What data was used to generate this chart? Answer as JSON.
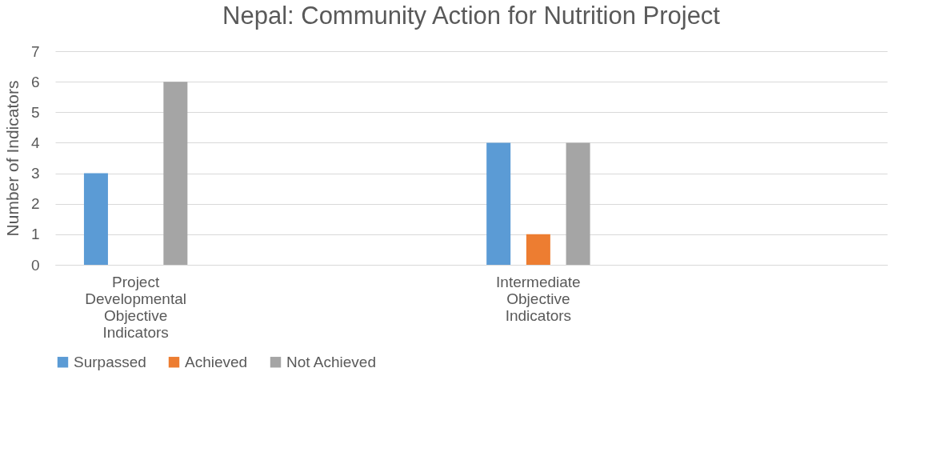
{
  "chart_data": {
    "type": "bar",
    "title": "Nepal: Community Action for Nutrition Project",
    "ylabel": "Number of Indicators",
    "categories": [
      "Project Developmental Objective Indicators",
      null,
      null,
      "Intermediate Objective Indicators",
      null,
      null
    ],
    "series": [
      {
        "name": "Surpassed",
        "color": "#5b9bd5",
        "values": [
          3,
          null,
          null,
          4,
          null,
          null
        ]
      },
      {
        "name": "Achieved",
        "color": "#ed7d31",
        "values": [
          0,
          null,
          null,
          1,
          null,
          null
        ]
      },
      {
        "name": "Not Achieved",
        "color": "#a5a5a5",
        "values": [
          6,
          null,
          null,
          4,
          null,
          null
        ]
      }
    ],
    "ylim": [
      0,
      7
    ],
    "yticks": [
      0,
      1,
      2,
      3,
      4,
      5,
      6,
      7
    ],
    "grid": "y",
    "legend": "bottom"
  }
}
